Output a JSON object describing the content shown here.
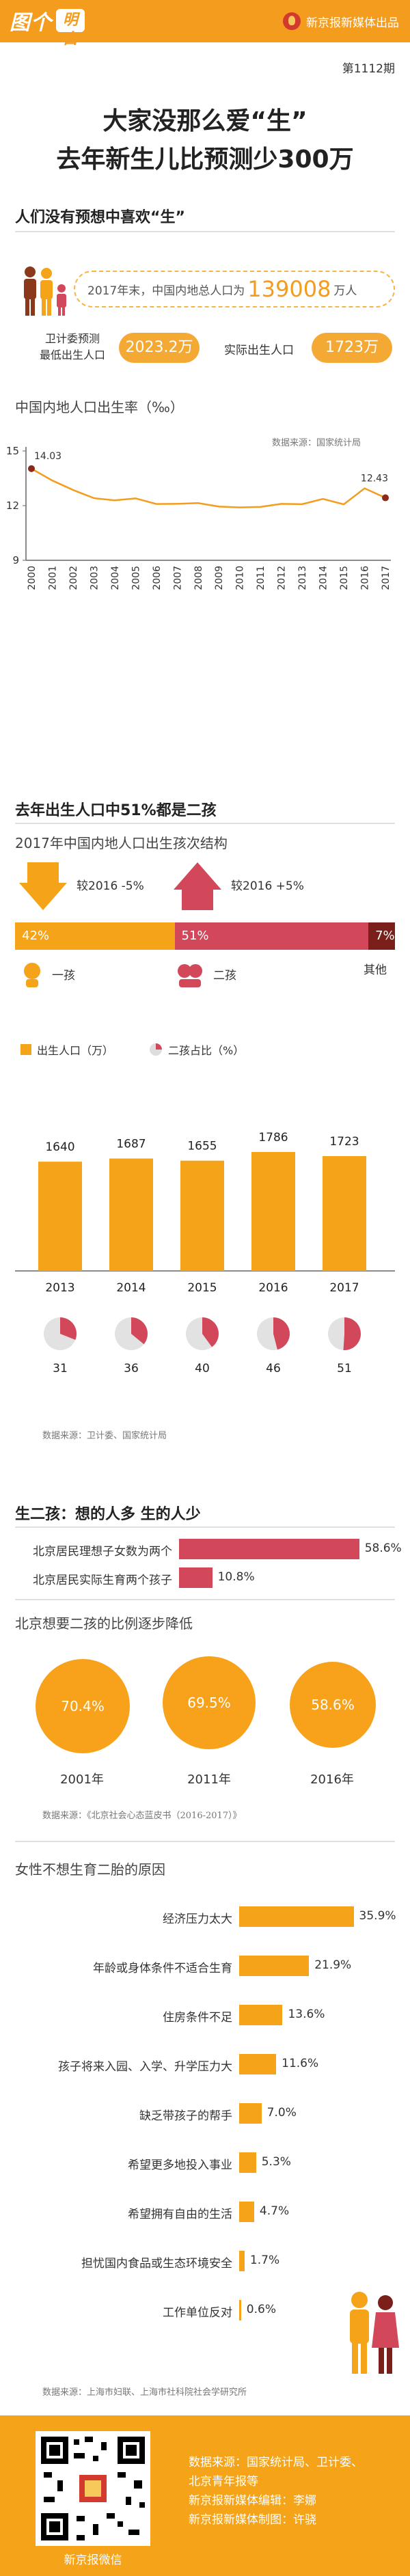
{
  "header": {
    "logo_text": "图个",
    "logo_mark": "明白",
    "brand": "新京报新媒体出品"
  },
  "issue": "第1112期",
  "title": {
    "line1": "大家没那么爱“生”",
    "line2": "去年新生儿比预测少300万"
  },
  "section1": {
    "title": "人们没有预想中喜欢“生”",
    "total_prefix": "2017年末，中国内地总人口为",
    "total_value": "139008",
    "total_unit": "万人",
    "pred_label_1": "卫计委预测",
    "pred_label_2": "最低出生人口",
    "pred_value": "2023.2万",
    "actual_label": "实际出生人口",
    "actual_value": "1723万"
  },
  "birthrate": {
    "title": "中国内地人口出生率（‰）",
    "source": "数据来源：国家统计局",
    "first_label": "14.03",
    "last_label": "12.43",
    "chart_data": {
      "type": "line",
      "x": [
        "2000",
        "2001",
        "2002",
        "2003",
        "2004",
        "2005",
        "2006",
        "2007",
        "2008",
        "2009",
        "2010",
        "2011",
        "2012",
        "2013",
        "2014",
        "2015",
        "2016",
        "2017"
      ],
      "y": [
        14.03,
        13.38,
        12.86,
        12.41,
        12.29,
        12.4,
        12.09,
        12.1,
        12.14,
        11.95,
        11.9,
        11.93,
        12.1,
        12.08,
        12.37,
        12.07,
        12.95,
        12.43
      ],
      "yticks": [
        "15",
        "12",
        "9"
      ],
      "ylim": [
        9,
        15
      ]
    }
  },
  "section2": {
    "title": "去年出生人口中51%都是二孩",
    "subtitle": "2017年中国内地人口出生孩次结构",
    "change_first": "较2016  -5%",
    "change_second": "较2016  +5%",
    "bar": [
      {
        "label": "42%",
        "value": 42,
        "color": "#f5a318"
      },
      {
        "label": "51%",
        "value": 51,
        "color": "#d2485a"
      },
      {
        "label": "7%",
        "value": 7,
        "color": "#7a1f1a"
      }
    ],
    "kid1": "一孩",
    "kid2": "二孩",
    "other": "其他",
    "legend_births": "出生人口（万）",
    "legend_share": "二孩占比（%）",
    "chart_data": {
      "type": "bar",
      "categories": [
        "2013",
        "2014",
        "2015",
        "2016",
        "2017"
      ],
      "values": [
        1640,
        1687,
        1655,
        1786,
        1723
      ],
      "second_child_share": [
        31,
        36,
        40,
        46,
        51
      ],
      "ylim": [
        0,
        2000
      ]
    },
    "source": "数据来源：卫计委、国家统计局"
  },
  "section3": {
    "title": "生二孩：想的人多 生的人少",
    "bars": [
      {
        "label": "北京居民理想子女数为两个",
        "value": 58.6,
        "display": "58.6%"
      },
      {
        "label": "北京居民实际生育两个孩子",
        "value": 10.8,
        "display": "10.8%"
      }
    ],
    "decline_title": "北京想要二孩的比例逐步降低",
    "circles": [
      {
        "year": "2001年",
        "value": "70.4%"
      },
      {
        "year": "2011年",
        "value": "69.5%"
      },
      {
        "year": "2016年",
        "value": "58.6%"
      }
    ],
    "source": "数据来源：《北京社会心态蓝皮书（2016-2017）》"
  },
  "section4": {
    "title": "女性不想生育二胎的原因",
    "reasons": [
      {
        "label": "经济压力太大",
        "value": 35.9,
        "display": "35.9%"
      },
      {
        "label": "年龄或身体条件不适合生育",
        "value": 21.9,
        "display": "21.9%"
      },
      {
        "label": "住房条件不足",
        "value": 13.6,
        "display": "13.6%"
      },
      {
        "label": "孩子将来入园、入学、升学压力大",
        "value": 11.6,
        "display": "11.6%"
      },
      {
        "label": "缺乏带孩子的帮手",
        "value": 7.0,
        "display": "7.0%"
      },
      {
        "label": "希望更多地投入事业",
        "value": 5.3,
        "display": "5.3%"
      },
      {
        "label": "希望拥有自由的生活",
        "value": 4.7,
        "display": "4.7%"
      },
      {
        "label": "担忧国内食品或生态环境安全",
        "value": 1.7,
        "display": "1.7%"
      },
      {
        "label": "工作单位反对",
        "value": 0.6,
        "display": "0.6%"
      }
    ],
    "source": "数据来源：上海市妇联、上海市社科院社会学研究所"
  },
  "footer": {
    "qr_label": "新京报微信",
    "line1": "数据来源：国家统计局、卫计委、",
    "line2": "北京青年报等",
    "line3": "新京报新媒体编辑：李娜",
    "line4": "新京报新媒体制图：许骁"
  },
  "colors": {
    "orange": "#f5a318",
    "red": "#d2485a",
    "dark": "#7a1f1a",
    "line": "#f39c1e"
  }
}
